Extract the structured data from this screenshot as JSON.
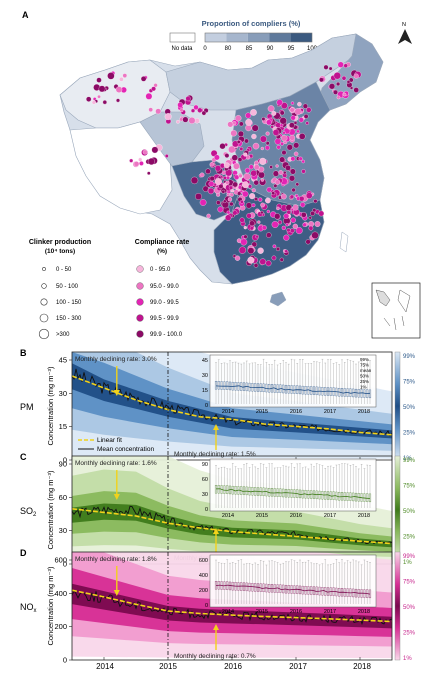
{
  "panel_a": {
    "letter": "A",
    "north_label": "N",
    "legend_title": "Proportion of compliers (%)",
    "no_data_label": "No data",
    "scale_ticks": [
      "0",
      "80",
      "85",
      "90",
      "95",
      "100"
    ],
    "scale_colors": [
      "#dfe5ee",
      "#c3cedf",
      "#a6b6cd",
      "#889db9",
      "#5f7a9c",
      "#3b5a80"
    ],
    "clinker_title_line1": "Clinker production",
    "clinker_title_line2": "(10⁴ tons)",
    "clinker_items": [
      "0 - 50",
      "50 - 100",
      "100 - 150",
      "150 - 300",
      ">300"
    ],
    "compliance_title_line1": "Compliance rate",
    "compliance_title_line2": "(%)",
    "compliance_items": [
      {
        "label": "0 - 95.0",
        "color": "#f7b6dc"
      },
      {
        "label": "95.0 - 99.0",
        "color": "#ec75c2"
      },
      {
        "label": "99.0 - 99.5",
        "color": "#e324b4"
      },
      {
        "label": "99.5 - 99.9",
        "color": "#c0138f"
      },
      {
        "label": "99.9 - 100.0",
        "color": "#8c0a66"
      }
    ]
  },
  "x_ticks": [
    "2014",
    "2015",
    "2016",
    "2017",
    "2018"
  ],
  "right_ticks": [
    "99%",
    "75%",
    "50%",
    "25%",
    "1%"
  ],
  "panels": [
    {
      "letter": "B",
      "pollutant_main": "PM",
      "pollutant_sub": "",
      "ylabel": "Concentration (mg m⁻³)",
      "yticks": [
        "45",
        "30",
        "15",
        "0"
      ],
      "rate_before": "Monthly declining rate: 3.0%",
      "rate_after": "Monthly declining rate: 1.5%",
      "legend_fit": "Linear fit",
      "legend_mean": "Mean concentration",
      "colors": [
        "#dbe8f5",
        "#a9c6e3",
        "#5b8fc4",
        "#1f4e86"
      ],
      "inset": {
        "yticks": [
          "45",
          "30",
          "15",
          "0"
        ],
        "xticks": [
          "2014",
          "2015",
          "2016",
          "2017",
          "2018"
        ],
        "legend": [
          "99%",
          "75%",
          "mean",
          "50%",
          "25%",
          "1%"
        ]
      },
      "chart_data": {
        "type": "line",
        "x": [
          2013.5,
          2014.0,
          2014.5,
          2015.0,
          2015.5,
          2016.0,
          2016.5,
          2017.0,
          2017.5,
          2018.0,
          2018.5
        ],
        "ylim": [
          0,
          45
        ],
        "series": [
          {
            "name": "Mean concentration",
            "values": [
              36,
              30,
              26,
              22,
              19,
              16,
              15,
              14,
              13,
              12,
              11
            ]
          },
          {
            "name": "Linear fit",
            "values": [
              35,
              30,
              25,
              21,
              18,
              17,
              15,
              14,
              13,
              11.5,
              10.5
            ]
          }
        ]
      }
    },
    {
      "letter": "C",
      "pollutant_main": "SO",
      "pollutant_sub": "2",
      "ylabel": "Concentration (mg m⁻³)",
      "yticks": [
        "90",
        "60",
        "30",
        "0"
      ],
      "rate_before": "Monthly declining rate: 1.6%",
      "rate_after": "Monthly declining rate: 1.7%",
      "legend_fit": "",
      "legend_mean": "",
      "colors": [
        "#e6f0d8",
        "#c2dca6",
        "#89b85c",
        "#3e7a1a"
      ],
      "inset": {
        "yticks": [
          "90",
          "60",
          "30",
          "0"
        ],
        "xticks": [
          "2014",
          "2015",
          "2016",
          "2017",
          "2018"
        ],
        "legend": []
      },
      "chart_data": {
        "type": "line",
        "x": [
          2013.5,
          2014.0,
          2014.5,
          2015.0,
          2015.5,
          2016.0,
          2016.5,
          2017.0,
          2017.5,
          2018.0,
          2018.5
        ],
        "ylim": [
          0,
          90
        ],
        "series": [
          {
            "name": "Mean concentration",
            "values": [
              42,
              45,
              44,
              36,
              30,
              27,
              26,
              25,
              22,
              19,
              17
            ]
          },
          {
            "name": "Linear fit",
            "values": [
              46,
              43,
              40,
              34,
              30,
              27,
              25,
              23,
              21,
              19,
              17
            ]
          }
        ]
      }
    },
    {
      "letter": "D",
      "pollutant_main": "NO",
      "pollutant_sub": "x",
      "ylabel": "Concentration (mg m⁻³)",
      "yticks": [
        "600",
        "400",
        "200",
        "0"
      ],
      "rate_before": "Monthly declining rate: 1.8%",
      "rate_after": "Monthly declining rate: 0.7%",
      "legend_fit": "",
      "legend_mean": "",
      "colors": [
        "#f9d7ea",
        "#f19bcf",
        "#d62d93",
        "#7a0a4e"
      ],
      "inset": {
        "yticks": [
          "600",
          "400",
          "200",
          "0"
        ],
        "xticks": [
          "2014",
          "2015",
          "2016",
          "2017",
          "2018"
        ],
        "legend": []
      },
      "chart_data": {
        "type": "line",
        "x": [
          2013.5,
          2014.0,
          2014.5,
          2015.0,
          2015.5,
          2016.0,
          2016.5,
          2017.0,
          2017.5,
          2018.0,
          2018.5
        ],
        "ylim": [
          0,
          650
        ],
        "series": [
          {
            "name": "Mean concentration",
            "values": [
              410,
              370,
              330,
              290,
              275,
              268,
              262,
              255,
              248,
              240,
              232
            ]
          },
          {
            "name": "Linear fit",
            "values": [
              420,
              380,
              335,
              295,
              280,
              270,
              262,
              255,
              248,
              240,
              232
            ]
          }
        ]
      }
    }
  ]
}
